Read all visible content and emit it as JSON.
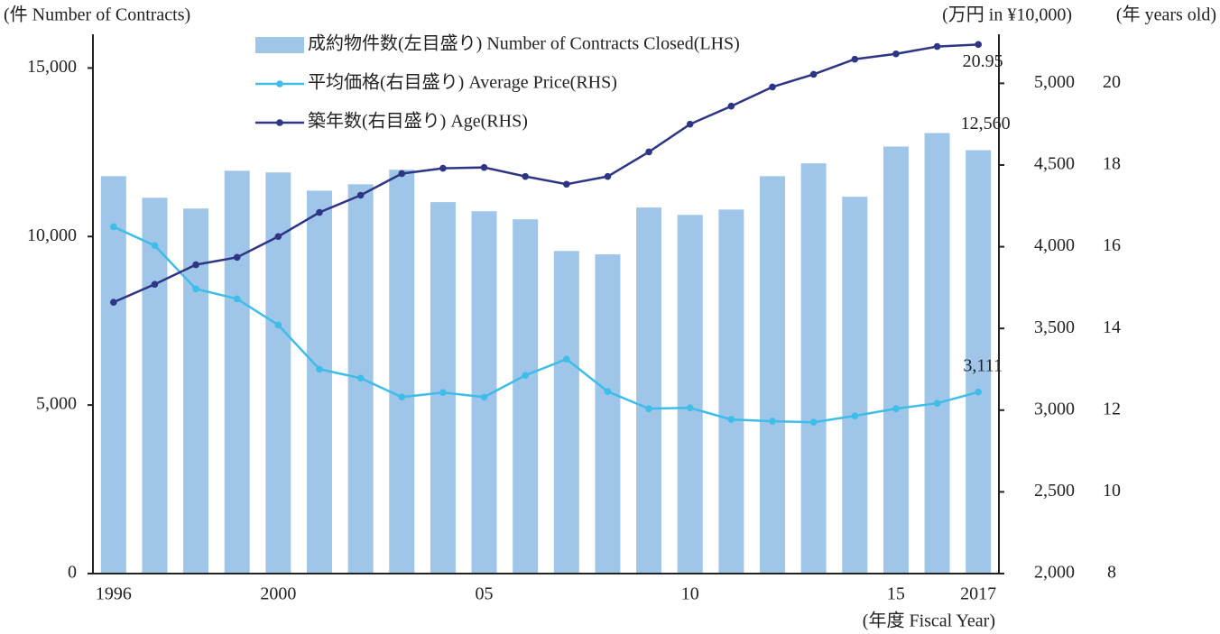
{
  "chart_data": {
    "type": "combo",
    "ylabel": "(件 Number of Contracts)",
    "y2label": "(万円 in ¥10,000)",
    "y3label": "(年 years old)",
    "xlabel": "(年度 Fiscal Year)",
    "categories": [
      "1996",
      null,
      null,
      null,
      "2000",
      null,
      null,
      null,
      null,
      "05",
      null,
      null,
      null,
      null,
      "10",
      null,
      null,
      null,
      null,
      "15",
      null,
      "2017"
    ],
    "series": [
      {
        "name": "成約物件数(左目盛り) Number of Contracts Closed(LHS)",
        "type": "bar",
        "color": "#9fc5e8",
        "values": [
          11790,
          11150,
          10830,
          11950,
          11900,
          11360,
          11550,
          11980,
          11020,
          10750,
          10510,
          9570,
          9470,
          10860,
          10640,
          10800,
          11790,
          12170,
          11180,
          12670,
          13070,
          12560
        ],
        "value_labels": [
          null,
          null,
          null,
          null,
          null,
          null,
          null,
          null,
          null,
          null,
          null,
          null,
          null,
          null,
          null,
          null,
          null,
          null,
          null,
          null,
          null,
          "12,560"
        ]
      },
      {
        "name": "平均価格(右目盛り) Average Price(RHS)",
        "type": "line",
        "axis": "y2",
        "color": "#3dbde8",
        "values": [
          4122,
          4007,
          3742,
          3681,
          3521,
          3251,
          3196,
          3080,
          3108,
          3080,
          3213,
          3312,
          3114,
          3009,
          3014,
          2943,
          2932,
          2926,
          2965,
          3009,
          3042,
          3111
        ],
        "value_labels": [
          null,
          null,
          null,
          null,
          null,
          null,
          null,
          null,
          null,
          null,
          null,
          null,
          null,
          null,
          null,
          null,
          null,
          null,
          null,
          null,
          null,
          "3,111"
        ]
      },
      {
        "name": "築年数(右目盛り) Age(RHS)",
        "type": "line",
        "axis": "y3",
        "color": "#2e3585",
        "values": [
          14.64,
          15.08,
          15.56,
          15.74,
          16.25,
          16.84,
          17.26,
          17.79,
          17.92,
          17.94,
          17.72,
          17.53,
          17.72,
          18.32,
          19.0,
          19.44,
          19.91,
          20.22,
          20.59,
          20.72,
          20.9,
          20.95
        ],
        "value_labels": [
          null,
          null,
          null,
          null,
          null,
          null,
          null,
          null,
          null,
          null,
          null,
          null,
          null,
          null,
          null,
          null,
          null,
          null,
          null,
          null,
          null,
          "20.95"
        ]
      }
    ],
    "ylim": [
      0,
      16000
    ],
    "yticks": [
      0,
      {
        "value": 5000,
        "label": "5,000"
      },
      {
        "value": 10000,
        "label": "10,000"
      },
      {
        "value": 15000,
        "label": "15,000"
      }
    ],
    "y2lim": [
      2000,
      5300
    ],
    "y2ticks": [
      {
        "value": 2000,
        "label": "2,000"
      },
      {
        "value": 2500,
        "label": "2,500"
      },
      {
        "value": 3000,
        "label": "3,000"
      },
      {
        "value": 3500,
        "label": "3,500"
      },
      {
        "value": 4000,
        "label": "4,000"
      },
      {
        "value": 4500,
        "label": "4,500"
      },
      {
        "value": 5000,
        "label": "5,000"
      }
    ],
    "y3lim": [
      8,
      21.2
    ],
    "y3ticks": [
      8,
      10,
      12,
      14,
      16,
      18,
      20
    ],
    "grid": false
  }
}
